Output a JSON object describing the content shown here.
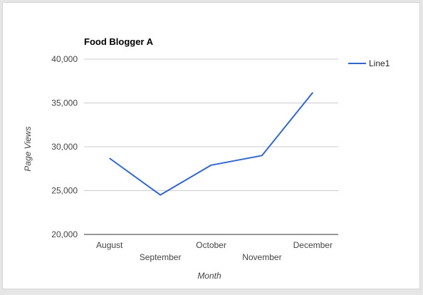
{
  "chart_data": {
    "type": "line",
    "title": "Food Blogger A",
    "xlabel": "Month",
    "ylabel": "Page Views",
    "categories": [
      "August",
      "September",
      "October",
      "November",
      "December"
    ],
    "series": [
      {
        "name": "Line1",
        "color": "#3366cc",
        "values": [
          28700,
          24500,
          27900,
          29000,
          36200
        ]
      }
    ],
    "ylim": [
      20000,
      40000
    ],
    "yticks": [
      {
        "value": 20000,
        "label": "20,000"
      },
      {
        "value": 25000,
        "label": "25,000"
      },
      {
        "value": 30000,
        "label": "30,000"
      },
      {
        "value": 35000,
        "label": "35,000"
      },
      {
        "value": 40000,
        "label": "40,000"
      }
    ],
    "grid": true,
    "legend_position": "right"
  }
}
